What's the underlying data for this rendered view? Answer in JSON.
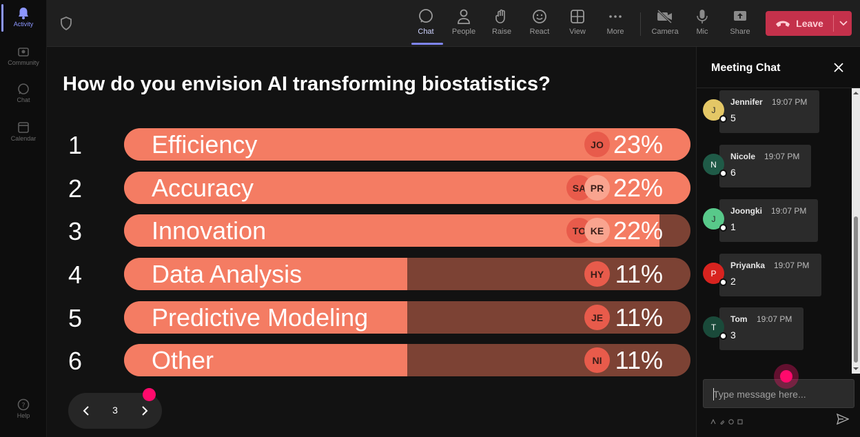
{
  "rail": {
    "items": [
      {
        "label": "Activity",
        "icon": "bell-icon",
        "active": true
      },
      {
        "label": "Community",
        "icon": "community-icon",
        "active": false
      },
      {
        "label": "Chat",
        "icon": "chat-icon",
        "active": false
      },
      {
        "label": "Calendar",
        "icon": "calendar-icon",
        "active": false
      }
    ],
    "help_label": "Help"
  },
  "toolbar": {
    "chat": "Chat",
    "people": "People",
    "raise": "Raise",
    "react": "React",
    "view": "View",
    "more": "More",
    "camera": "Camera",
    "mic": "Mic",
    "share": "Share",
    "leave": "Leave",
    "active": "chat",
    "leave_color": "#c4314b"
  },
  "poll": {
    "question": "How do you envision AI transforming biostatistics?",
    "options": [
      {
        "num": "1",
        "label": "Efficiency",
        "percent": "23%",
        "fill": 1.0,
        "avatars": [
          "JO"
        ]
      },
      {
        "num": "2",
        "label": "Accuracy",
        "percent": "22%",
        "fill": 1.0,
        "avatars": [
          "SA",
          "PR"
        ]
      },
      {
        "num": "3",
        "label": "Innovation",
        "percent": "22%",
        "fill": 0.945,
        "avatars": [
          "TO",
          "KE"
        ]
      },
      {
        "num": "4",
        "label": "Data Analysis",
        "percent": "11%",
        "fill": 0.5,
        "avatars": [
          "HY"
        ]
      },
      {
        "num": "5",
        "label": "Predictive Modeling",
        "percent": "11%",
        "fill": 0.5,
        "avatars": [
          "JE"
        ]
      },
      {
        "num": "6",
        "label": "Other",
        "percent": "11%",
        "fill": 0.5,
        "avatars": [
          "NI"
        ]
      }
    ],
    "bar_color": "#f47c63",
    "bar_track_color": "#7c4234"
  },
  "pager": {
    "page": "3"
  },
  "chat": {
    "title": "Meeting Chat",
    "messages": [
      {
        "initial": "J",
        "name": "Jennifer",
        "time": "19:07 PM",
        "text": "5",
        "color": "#e4c766"
      },
      {
        "initial": "N",
        "name": "Nicole",
        "time": "19:07 PM",
        "text": "6",
        "color": "#1f5a47"
      },
      {
        "initial": "J",
        "name": "Joongki",
        "time": "19:07 PM",
        "text": "1",
        "color": "#58c98a"
      },
      {
        "initial": "P",
        "name": "Priyanka",
        "time": "19:07 PM",
        "text": "2",
        "color": "#d8231f"
      },
      {
        "initial": "T",
        "name": "Tom",
        "time": "19:07 PM",
        "text": "3",
        "color": "#1a4a3a"
      }
    ],
    "input_placeholder": "Type message here..."
  }
}
